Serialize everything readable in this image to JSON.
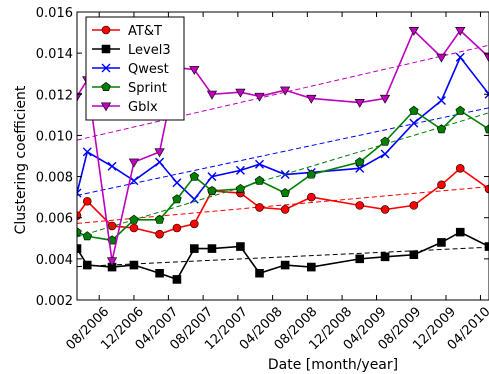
{
  "chart_data": {
    "type": "line",
    "xlabel": "Date [month/year]",
    "ylabel": "Clustering coefficient",
    "xlim": [
      "2006-05-15",
      "2010-05-01"
    ],
    "ylim": [
      0.002,
      0.016
    ],
    "x_ticks": [
      "2006-08-01",
      "2006-12-01",
      "2007-04-01",
      "2007-08-01",
      "2007-12-01",
      "2008-04-01",
      "2008-08-01",
      "2008-12-01",
      "2009-04-01",
      "2009-08-01",
      "2009-12-01",
      "2010-04-01"
    ],
    "x_tick_labels": [
      "08/2006",
      "12/2006",
      "04/2007",
      "08/2007",
      "12/2007",
      "04/2008",
      "08/2008",
      "12/2008",
      "04/2009",
      "08/2009",
      "12/2009",
      "04/2010"
    ],
    "y_ticks": [
      0.002,
      0.004,
      0.006,
      0.008,
      0.01,
      0.012,
      0.014,
      0.016
    ],
    "y_tick_labels": [
      "0.002",
      "0.004",
      "0.006",
      "0.008",
      "0.010",
      "0.012",
      "0.014",
      "0.016"
    ],
    "grid": false,
    "legend_position": "top-left",
    "series": [
      {
        "name": "AT&T",
        "color": "#ff0000",
        "marker": "circle",
        "x": [
          "2006-05-15",
          "2006-06-20",
          "2006-09-15",
          "2006-12-01",
          "2007-03-01",
          "2007-05-01",
          "2007-07-01",
          "2007-09-01",
          "2007-12-10",
          "2008-02-15",
          "2008-05-15",
          "2008-08-15",
          "2009-02-01",
          "2009-05-01",
          "2009-08-10",
          "2009-11-15",
          "2010-01-20",
          "2010-05-01"
        ],
        "y": [
          0.0061,
          0.0068,
          0.0056,
          0.0055,
          0.0052,
          0.0055,
          0.0057,
          0.0073,
          0.0072,
          0.0065,
          0.0064,
          0.007,
          0.0066,
          0.0064,
          0.0066,
          0.0076,
          0.0084,
          0.0074
        ]
      },
      {
        "name": "Level3",
        "color": "#000000",
        "marker": "square",
        "x": [
          "2006-05-15",
          "2006-06-20",
          "2006-09-15",
          "2006-12-01",
          "2007-03-01",
          "2007-05-01",
          "2007-07-01",
          "2007-09-01",
          "2007-12-10",
          "2008-02-15",
          "2008-05-15",
          "2008-08-15",
          "2009-02-01",
          "2009-05-01",
          "2009-08-10",
          "2009-11-15",
          "2010-01-20",
          "2010-05-01"
        ],
        "y": [
          0.0045,
          0.0037,
          0.0036,
          0.0037,
          0.0033,
          0.003,
          0.0045,
          0.0045,
          0.0046,
          0.0033,
          0.0037,
          0.0036,
          0.004,
          0.0041,
          0.0042,
          0.0048,
          0.0053,
          0.0046
        ]
      },
      {
        "name": "Qwest",
        "color": "#0000ff",
        "marker": "x",
        "x": [
          "2006-05-15",
          "2006-06-20",
          "2006-09-15",
          "2006-12-01",
          "2007-03-01",
          "2007-05-01",
          "2007-07-01",
          "2007-09-01",
          "2007-12-10",
          "2008-02-15",
          "2008-05-15",
          "2008-08-15",
          "2009-02-01",
          "2009-05-01",
          "2009-08-10",
          "2009-11-15",
          "2010-01-20",
          "2010-05-01"
        ],
        "y": [
          0.0072,
          0.0092,
          0.0085,
          0.0078,
          0.0087,
          0.0077,
          0.0069,
          0.008,
          0.0083,
          0.0086,
          0.0081,
          0.0082,
          0.0084,
          0.0091,
          0.0106,
          0.0117,
          0.0138,
          0.012
        ]
      },
      {
        "name": "Sprint",
        "color": "#008000",
        "marker": "pentagon",
        "x": [
          "2006-05-15",
          "2006-06-20",
          "2006-09-15",
          "2006-12-01",
          "2007-03-01",
          "2007-05-01",
          "2007-07-01",
          "2007-09-01",
          "2007-12-10",
          "2008-02-15",
          "2008-05-15",
          "2008-08-15",
          "2009-02-01",
          "2009-05-01",
          "2009-08-10",
          "2009-11-15",
          "2010-01-20",
          "2010-05-01"
        ],
        "y": [
          0.0053,
          0.0051,
          0.0049,
          0.0059,
          0.0059,
          0.0069,
          0.008,
          0.0073,
          0.0074,
          0.0078,
          0.0072,
          0.0081,
          0.0087,
          0.0097,
          0.0112,
          0.0103,
          0.0112,
          0.0103
        ]
      },
      {
        "name": "Gblx",
        "color": "#bf00bf",
        "marker": "triangle-down",
        "x": [
          "2006-05-15",
          "2006-06-20",
          "2006-09-15",
          "2006-12-01",
          "2007-03-01",
          "2007-05-01",
          "2007-07-01",
          "2007-09-01",
          "2007-12-10",
          "2008-02-15",
          "2008-05-15",
          "2008-08-15",
          "2009-02-01",
          "2009-05-01",
          "2009-08-10",
          "2009-11-15",
          "2010-01-20",
          "2010-05-01"
        ],
        "y": [
          0.0119,
          0.0127,
          0.0039,
          0.0087,
          0.0092,
          0.0133,
          0.0132,
          0.012,
          0.0121,
          0.0119,
          0.0122,
          0.0118,
          0.0116,
          0.0118,
          0.0151,
          0.0138,
          0.0151,
          0.0138
        ]
      }
    ]
  }
}
